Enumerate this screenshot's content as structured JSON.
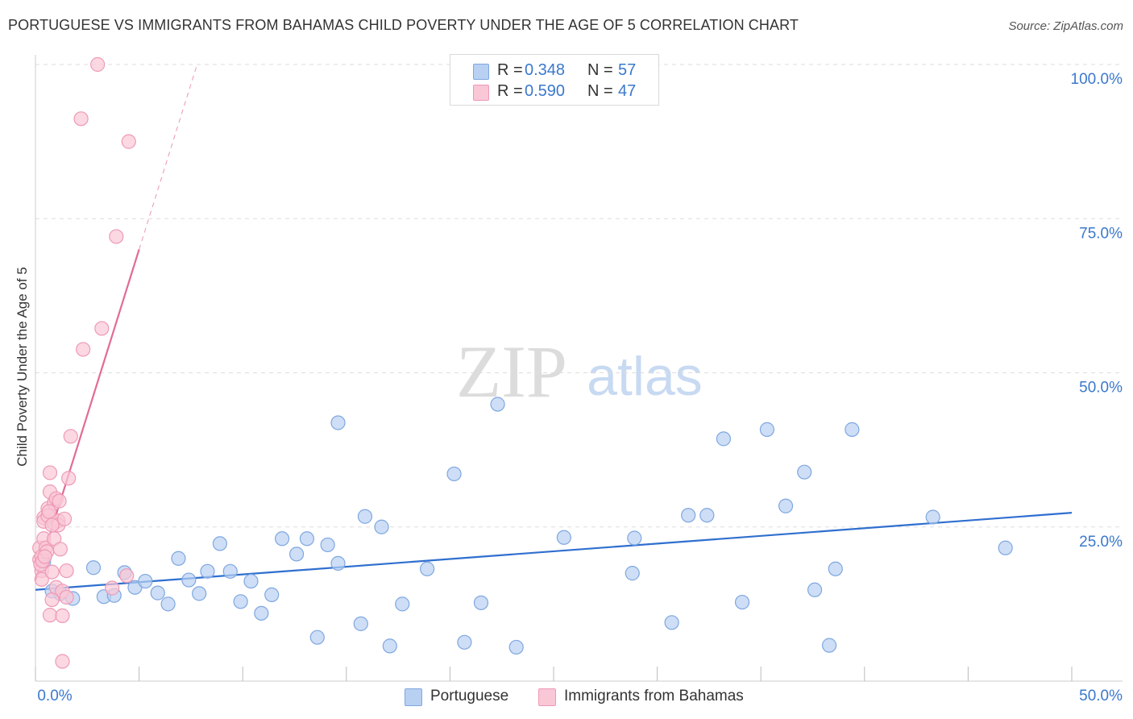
{
  "title": "PORTUGUESE VS IMMIGRANTS FROM BAHAMAS CHILD POVERTY UNDER THE AGE OF 5 CORRELATION CHART",
  "source": "Source: ZipAtlas.com",
  "watermark": {
    "part1": "ZIP",
    "part2": "atlas"
  },
  "legend": {
    "r_label": "R =",
    "n_label": "N =",
    "series": [
      {
        "name": "Portuguese",
        "r": "0.348",
        "n": "57"
      },
      {
        "name": "Immigrants from Bahamas",
        "r": "0.590",
        "n": "47"
      }
    ]
  },
  "colors": {
    "blue_fill": "#b8d0f2",
    "blue_stroke": "#7fa7e0",
    "blue_line": "#2f6fcf",
    "pink_fill": "#f9c7d6",
    "pink_stroke": "#ee9ab5",
    "pink_line": "#e26b97",
    "tick_text": "#3b78cc",
    "grid": "#dddddd"
  },
  "chart_data": {
    "type": "scatter",
    "title": "PORTUGUESE VS IMMIGRANTS FROM BAHAMAS CHILD POVERTY UNDER THE AGE OF 5 CORRELATION CHART",
    "xlabel": "",
    "ylabel": "Child Poverty Under the Age of 5",
    "xlim": [
      0,
      50
    ],
    "ylim": [
      0,
      100
    ],
    "x_tick_labels": [
      "0.0%",
      "50.0%"
    ],
    "y_ticks": [
      25,
      50,
      75,
      100
    ],
    "y_tick_labels": [
      "25.0%",
      "50.0%",
      "75.0%",
      "100.0%"
    ],
    "grid": true,
    "series": [
      {
        "name": "Portuguese",
        "r": 0.348,
        "n": 57,
        "trend": {
          "x0": 0,
          "y0": 14.8,
          "x1": 50,
          "y1": 27.3
        },
        "points": [
          [
            0.4,
            19.3
          ],
          [
            1.2,
            14.2
          ],
          [
            1.8,
            13.4
          ],
          [
            2.8,
            18.4
          ],
          [
            3.3,
            13.7
          ],
          [
            3.8,
            13.9
          ],
          [
            4.3,
            17.6
          ],
          [
            4.8,
            15.2
          ],
          [
            5.3,
            16.2
          ],
          [
            5.9,
            14.3
          ],
          [
            6.4,
            12.5
          ],
          [
            6.9,
            19.9
          ],
          [
            7.4,
            16.4
          ],
          [
            7.9,
            14.2
          ],
          [
            8.3,
            17.8
          ],
          [
            8.9,
            22.3
          ],
          [
            9.4,
            17.8
          ],
          [
            9.9,
            12.9
          ],
          [
            10.4,
            16.2
          ],
          [
            10.9,
            11.0
          ],
          [
            11.4,
            14.0
          ],
          [
            11.9,
            23.1
          ],
          [
            12.6,
            20.6
          ],
          [
            13.1,
            23.1
          ],
          [
            13.6,
            7.1
          ],
          [
            14.1,
            22.1
          ],
          [
            14.6,
            19.1
          ],
          [
            14.6,
            41.9
          ],
          [
            15.7,
            9.3
          ],
          [
            15.9,
            26.7
          ],
          [
            16.7,
            25.0
          ],
          [
            17.1,
            5.7
          ],
          [
            17.7,
            12.5
          ],
          [
            18.9,
            18.2
          ],
          [
            20.2,
            33.6
          ],
          [
            20.7,
            6.3
          ],
          [
            21.5,
            12.7
          ],
          [
            22.3,
            44.9
          ],
          [
            23.2,
            5.5
          ],
          [
            25.5,
            23.3
          ],
          [
            28.8,
            17.5
          ],
          [
            28.9,
            23.2
          ],
          [
            30.7,
            9.5
          ],
          [
            31.5,
            26.9
          ],
          [
            32.4,
            26.9
          ],
          [
            33.2,
            39.3
          ],
          [
            34.1,
            12.8
          ],
          [
            35.3,
            40.8
          ],
          [
            36.2,
            28.4
          ],
          [
            37.1,
            33.9
          ],
          [
            37.6,
            14.8
          ],
          [
            38.3,
            5.8
          ],
          [
            38.6,
            18.2
          ],
          [
            39.4,
            40.8
          ],
          [
            43.3,
            26.6
          ],
          [
            46.8,
            21.6
          ],
          [
            0.8,
            14.6
          ]
        ]
      },
      {
        "name": "Immigrants from Bahamas",
        "r": 0.59,
        "n": 47,
        "trend": {
          "x0": 0,
          "y0": 16.3,
          "x1": 5.0,
          "y1": 70.0
        },
        "trend_dashed": {
          "x0": 5.0,
          "y0": 70.0,
          "x1": 7.8,
          "y1": 100
        },
        "points": [
          [
            0.2,
            21.6
          ],
          [
            0.2,
            19.7
          ],
          [
            0.3,
            17.9
          ],
          [
            0.3,
            16.5
          ],
          [
            0.3,
            20.2
          ],
          [
            0.4,
            23.1
          ],
          [
            0.4,
            26.5
          ],
          [
            0.4,
            25.9
          ],
          [
            0.5,
            21.6
          ],
          [
            0.6,
            28.0
          ],
          [
            0.6,
            26.8
          ],
          [
            0.7,
            30.7
          ],
          [
            0.7,
            33.8
          ],
          [
            0.7,
            10.7
          ],
          [
            0.8,
            17.7
          ],
          [
            0.8,
            13.2
          ],
          [
            0.9,
            25.6
          ],
          [
            0.9,
            28.9
          ],
          [
            0.9,
            23.1
          ],
          [
            1.0,
            29.6
          ],
          [
            1.0,
            15.2
          ],
          [
            1.1,
            26.0
          ],
          [
            1.1,
            25.3
          ],
          [
            1.2,
            21.4
          ],
          [
            1.3,
            3.2
          ],
          [
            1.3,
            14.6
          ],
          [
            1.3,
            10.6
          ],
          [
            1.4,
            26.3
          ],
          [
            1.5,
            17.9
          ],
          [
            1.5,
            13.6
          ],
          [
            1.6,
            32.9
          ],
          [
            1.7,
            39.7
          ],
          [
            2.2,
            91.2
          ],
          [
            2.3,
            53.8
          ],
          [
            3.2,
            57.2
          ],
          [
            3.7,
            15.1
          ],
          [
            3.9,
            72.1
          ],
          [
            4.4,
            17.1
          ],
          [
            4.5,
            87.5
          ],
          [
            3.0,
            100.0
          ],
          [
            0.25,
            18.9
          ],
          [
            0.35,
            19.5
          ],
          [
            0.55,
            21.0
          ],
          [
            0.65,
            27.5
          ],
          [
            0.8,
            25.3
          ],
          [
            1.15,
            29.2
          ],
          [
            0.45,
            20.2
          ]
        ]
      }
    ]
  }
}
